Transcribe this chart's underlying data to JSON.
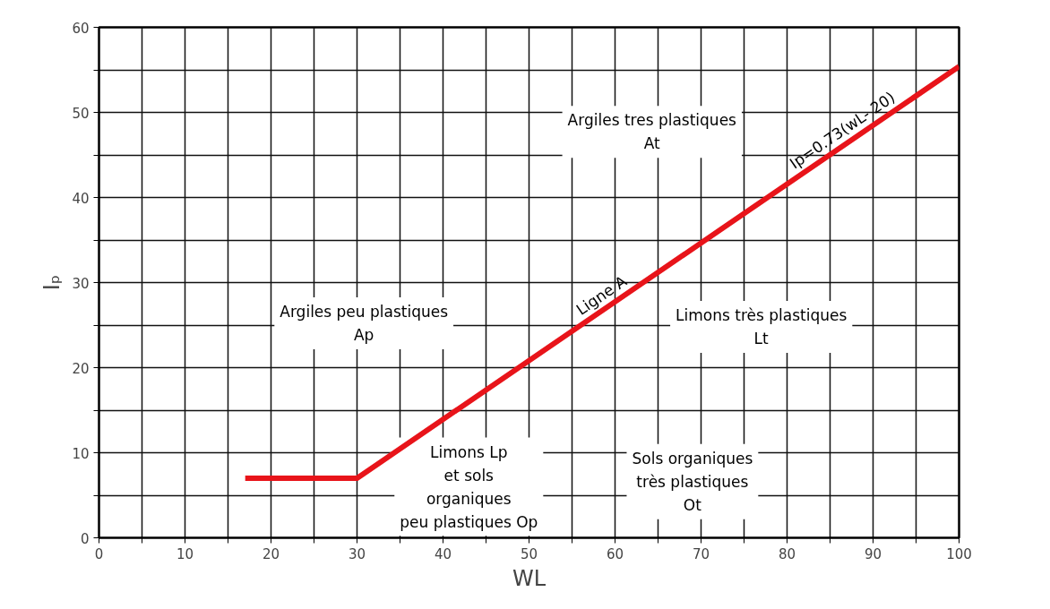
{
  "chart_data": {
    "type": "line",
    "xlabel": "WL",
    "ylabel": "Iₚ",
    "series": [
      {
        "color": "#e8141a",
        "x": [
          17,
          30,
          100
        ],
        "values": [
          7,
          7,
          55.4
        ]
      }
    ],
    "xlim": [
      0,
      100
    ],
    "ylim": [
      0,
      60
    ],
    "xticks": [
      0,
      {
        "value": 5,
        "label": null
      },
      10,
      {
        "value": 15,
        "label": null
      },
      20,
      {
        "value": 25,
        "label": null
      },
      30,
      {
        "value": 35,
        "label": null
      },
      40,
      {
        "value": 45,
        "label": null
      },
      50,
      {
        "value": 55,
        "label": null
      },
      60,
      {
        "value": 65,
        "label": null
      },
      70,
      {
        "value": 75,
        "label": null
      },
      80,
      {
        "value": 85,
        "label": null
      },
      90,
      {
        "value": 95,
        "label": null
      },
      100
    ],
    "yticks": [
      0,
      {
        "value": 5,
        "label": null
      },
      10,
      {
        "value": 15,
        "label": null
      },
      20,
      {
        "value": 25,
        "label": null
      },
      30,
      {
        "value": 35,
        "label": null
      },
      40,
      {
        "value": 45,
        "label": null
      },
      50,
      {
        "value": 55,
        "label": null
      },
      60
    ],
    "grid": true,
    "marker": "none",
    "line_style": "solid",
    "annotations": [
      "Argiles tres plastiques\nAt",
      "Argiles peu plastiques\nAp",
      "Limons très plastiques\nLt",
      "Sols organiques\ntrès plastiques\nOt",
      "Limons Lp\net sols\norganiques\npeu plastiques Op",
      {
        "text": "Ligne A",
        "x": 59,
        "y": 27
      },
      {
        "text": "Ip=0.73(wL- 20)",
        "x": 87,
        "y": 46.4
      }
    ]
  }
}
